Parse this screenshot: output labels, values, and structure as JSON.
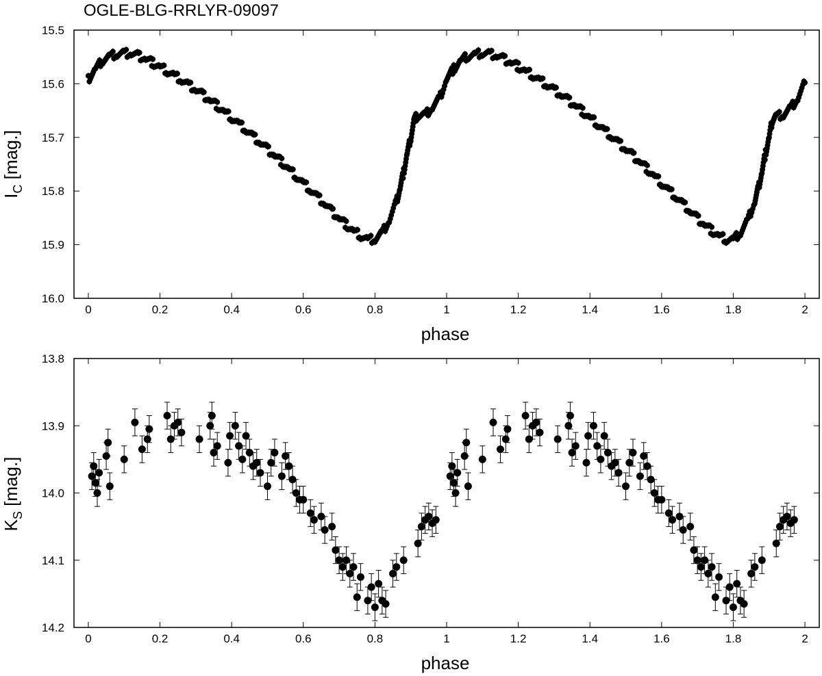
{
  "title": "OGLE-BLG-RRLYR-09097",
  "chart_data": [
    {
      "type": "scatter",
      "ylabel_main": "I",
      "ylabel_sub": "C",
      "ylabel_rest": " [mag.]",
      "xlabel": "phase",
      "xlim": [
        -0.04,
        2.04
      ],
      "ylim": [
        16.0,
        15.5
      ],
      "y_inverted": true,
      "xticks": [
        0,
        0.2,
        0.4,
        0.6,
        0.8,
        1,
        1.2,
        1.4,
        1.6,
        1.8,
        2
      ],
      "xtick_labels": [
        "0",
        "0.2",
        "0.4",
        "0.6",
        "0.8",
        "1",
        "1.2",
        "1.4",
        "1.6",
        "1.8",
        "2"
      ],
      "yticks": [
        15.5,
        15.6,
        15.7,
        15.8,
        15.9,
        16.0
      ],
      "ytick_labels": [
        "15.5",
        "15.6",
        "15.7",
        "15.8",
        "15.9",
        "16.0"
      ],
      "marker_color": "#000000",
      "error_bar": 0.006,
      "series": [
        {
          "x": [
            0.0,
            0.02,
            0.04,
            0.06,
            0.08,
            0.1,
            0.12,
            0.14,
            0.16,
            0.18,
            0.2,
            0.22,
            0.24,
            0.26,
            0.28,
            0.3,
            0.32,
            0.34,
            0.36,
            0.38,
            0.4,
            0.42,
            0.44,
            0.46,
            0.48,
            0.5,
            0.52,
            0.54,
            0.56,
            0.58,
            0.6,
            0.62,
            0.64,
            0.66,
            0.68,
            0.7,
            0.72,
            0.74,
            0.76,
            0.78,
            0.8,
            0.82,
            0.84,
            0.86,
            0.87,
            0.88,
            0.89,
            0.9,
            0.91,
            0.92,
            0.94,
            0.96,
            0.98,
            1.0,
            1.02,
            1.04,
            1.06,
            1.08,
            1.1,
            1.12,
            1.14,
            1.16,
            1.18,
            1.2,
            1.22,
            1.24,
            1.26,
            1.28,
            1.3,
            1.32,
            1.34,
            1.36,
            1.38,
            1.4,
            1.42,
            1.44,
            1.46,
            1.48,
            1.5,
            1.52,
            1.54,
            1.56,
            1.58,
            1.6,
            1.62,
            1.64,
            1.66,
            1.68,
            1.7,
            1.72,
            1.74,
            1.76,
            1.78,
            1.8,
            1.82,
            1.84,
            1.86,
            1.87,
            1.88,
            1.89,
            1.9,
            1.91,
            1.92,
            1.94,
            1.96,
            1.98,
            2.0
          ],
          "y": [
            15.592,
            15.572,
            15.556,
            15.548,
            15.545,
            15.543,
            15.544,
            15.548,
            15.554,
            15.561,
            15.568,
            15.576,
            15.584,
            15.593,
            15.602,
            15.611,
            15.621,
            15.631,
            15.641,
            15.652,
            15.663,
            15.674,
            15.686,
            15.698,
            15.71,
            15.722,
            15.734,
            15.746,
            15.759,
            15.772,
            15.785,
            15.798,
            15.811,
            15.824,
            15.838,
            15.851,
            15.863,
            15.874,
            15.883,
            15.89,
            15.89,
            15.878,
            15.855,
            15.82,
            15.795,
            15.765,
            15.73,
            15.7,
            15.665,
            15.66,
            15.658,
            15.645,
            15.628,
            15.592,
            15.572,
            15.556,
            15.548,
            15.545,
            15.543,
            15.544,
            15.548,
            15.554,
            15.561,
            15.568,
            15.576,
            15.584,
            15.593,
            15.602,
            15.611,
            15.621,
            15.631,
            15.641,
            15.652,
            15.663,
            15.674,
            15.686,
            15.698,
            15.71,
            15.722,
            15.734,
            15.746,
            15.759,
            15.772,
            15.785,
            15.798,
            15.811,
            15.824,
            15.838,
            15.851,
            15.863,
            15.874,
            15.883,
            15.89,
            15.89,
            15.878,
            15.855,
            15.82,
            15.795,
            15.765,
            15.73,
            15.7,
            15.665,
            15.66,
            15.658,
            15.645,
            15.628,
            15.598
          ]
        }
      ]
    },
    {
      "type": "scatter",
      "ylabel_main": "K",
      "ylabel_sub": "S",
      "ylabel_rest": " [mag.]",
      "xlabel": "phase",
      "xlim": [
        -0.04,
        2.04
      ],
      "ylim": [
        14.2,
        13.8
      ],
      "y_inverted": true,
      "xticks": [
        0,
        0.2,
        0.4,
        0.6,
        0.8,
        1,
        1.2,
        1.4,
        1.6,
        1.8,
        2
      ],
      "xtick_labels": [
        "0",
        "0.2",
        "0.4",
        "0.6",
        "0.8",
        "1",
        "1.2",
        "1.4",
        "1.6",
        "1.8",
        "2"
      ],
      "yticks": [
        13.8,
        13.9,
        14.0,
        14.1,
        14.2
      ],
      "ytick_labels": [
        "13.8",
        "13.9",
        "14.0",
        "14.1",
        "14.2"
      ],
      "marker_color": "#000000",
      "error_bar": 0.02,
      "series": [
        {
          "x": [
            0.01,
            0.015,
            0.02,
            0.025,
            0.03,
            0.05,
            0.055,
            0.06,
            0.1,
            0.13,
            0.15,
            0.165,
            0.17,
            0.22,
            0.23,
            0.24,
            0.25,
            0.26,
            0.31,
            0.34,
            0.345,
            0.35,
            0.36,
            0.39,
            0.395,
            0.41,
            0.42,
            0.43,
            0.44,
            0.45,
            0.46,
            0.47,
            0.48,
            0.5,
            0.51,
            0.52,
            0.54,
            0.55,
            0.56,
            0.57,
            0.58,
            0.59,
            0.6,
            0.62,
            0.63,
            0.65,
            0.66,
            0.68,
            0.69,
            0.7,
            0.71,
            0.72,
            0.73,
            0.74,
            0.75,
            0.76,
            0.78,
            0.79,
            0.8,
            0.81,
            0.82,
            0.83,
            0.85,
            0.86,
            0.88,
            0.92,
            0.93,
            0.94,
            0.95,
            0.96,
            0.97
          ],
          "y": [
            13.975,
            13.96,
            13.985,
            14.0,
            13.97,
            13.945,
            13.925,
            13.99,
            13.95,
            13.895,
            13.935,
            13.92,
            13.905,
            13.885,
            13.92,
            13.9,
            13.895,
            13.91,
            13.92,
            13.9,
            13.885,
            13.94,
            13.93,
            13.955,
            13.915,
            13.9,
            13.93,
            13.95,
            13.915,
            13.94,
            13.96,
            13.955,
            13.97,
            13.99,
            13.955,
            13.94,
            13.975,
            13.945,
            13.96,
            13.98,
            14.0,
            14.01,
            14.01,
            14.03,
            14.04,
            14.035,
            14.055,
            14.05,
            14.085,
            14.1,
            14.11,
            14.1,
            14.12,
            14.11,
            14.155,
            14.125,
            14.16,
            14.14,
            14.17,
            14.135,
            14.16,
            14.165,
            14.12,
            14.11,
            14.1,
            14.075,
            14.05,
            14.04,
            14.035,
            14.045,
            14.04
          ]
        },
        {
          "x": [
            1.01,
            1.015,
            1.02,
            1.025,
            1.03,
            1.05,
            1.055,
            1.06,
            1.1,
            1.13,
            1.15,
            1.165,
            1.17,
            1.22,
            1.23,
            1.24,
            1.25,
            1.26,
            1.31,
            1.34,
            1.345,
            1.35,
            1.36,
            1.39,
            1.395,
            1.41,
            1.42,
            1.43,
            1.44,
            1.45,
            1.46,
            1.47,
            1.48,
            1.5,
            1.51,
            1.52,
            1.54,
            1.55,
            1.56,
            1.57,
            1.58,
            1.59,
            1.6,
            1.62,
            1.63,
            1.65,
            1.66,
            1.68,
            1.69,
            1.7,
            1.71,
            1.72,
            1.73,
            1.74,
            1.75,
            1.76,
            1.78,
            1.79,
            1.8,
            1.81,
            1.82,
            1.83,
            1.85,
            1.86,
            1.88,
            1.92,
            1.93,
            1.94,
            1.95,
            1.96,
            1.97
          ],
          "y": [
            13.975,
            13.96,
            13.985,
            14.0,
            13.97,
            13.945,
            13.925,
            13.99,
            13.95,
            13.895,
            13.935,
            13.92,
            13.905,
            13.885,
            13.92,
            13.9,
            13.895,
            13.91,
            13.92,
            13.9,
            13.885,
            13.94,
            13.93,
            13.955,
            13.915,
            13.9,
            13.93,
            13.95,
            13.915,
            13.94,
            13.96,
            13.955,
            13.97,
            13.99,
            13.955,
            13.94,
            13.975,
            13.945,
            13.96,
            13.98,
            14.0,
            14.01,
            14.01,
            14.03,
            14.04,
            14.035,
            14.055,
            14.05,
            14.085,
            14.1,
            14.11,
            14.1,
            14.12,
            14.11,
            14.155,
            14.125,
            14.16,
            14.14,
            14.17,
            14.135,
            14.16,
            14.165,
            14.12,
            14.11,
            14.1,
            14.075,
            14.05,
            14.04,
            14.035,
            14.045,
            14.04
          ]
        }
      ]
    }
  ]
}
